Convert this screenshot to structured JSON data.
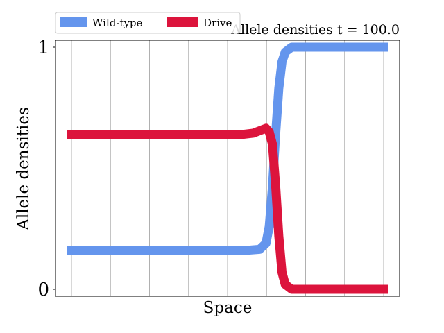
{
  "chart_data": {
    "type": "line",
    "title": "Allele densities t = 100.0",
    "xlabel": "Space",
    "ylabel": "Allele densities",
    "xlim": [
      0,
      1
    ],
    "ylim": [
      0,
      1
    ],
    "yticks": [
      {
        "value": 0,
        "label": "0"
      },
      {
        "value": 1,
        "label": "1"
      }
    ],
    "xgrid": [
      0,
      0.1,
      0.2,
      0.3,
      0.4,
      0.5,
      0.6,
      0.7,
      0.8
    ],
    "grid": "vertical",
    "legend": "top-left, above axes",
    "series": [
      {
        "name": "Wild-type",
        "color": "#6495ED",
        "x": [
          0,
          0.1,
          0.2,
          0.3,
          0.4,
          0.5,
          0.55,
          0.6,
          0.62,
          0.63,
          0.64,
          0.65,
          0.66,
          0.67,
          0.68,
          0.7,
          0.72,
          0.75,
          0.8,
          0.9,
          1.0
        ],
        "y": [
          0.16,
          0.16,
          0.16,
          0.16,
          0.16,
          0.16,
          0.16,
          0.165,
          0.19,
          0.26,
          0.42,
          0.64,
          0.83,
          0.94,
          0.98,
          1.0,
          1.0,
          1.0,
          1.0,
          1.0,
          1.0
        ]
      },
      {
        "name": "Drive",
        "color": "#DC143C",
        "x": [
          0,
          0.1,
          0.2,
          0.3,
          0.4,
          0.5,
          0.55,
          0.58,
          0.6,
          0.62,
          0.63,
          0.64,
          0.65,
          0.66,
          0.67,
          0.68,
          0.7,
          0.72,
          0.75,
          0.8,
          0.9,
          1.0
        ],
        "y": [
          0.64,
          0.64,
          0.64,
          0.64,
          0.64,
          0.64,
          0.64,
          0.645,
          0.655,
          0.665,
          0.65,
          0.6,
          0.43,
          0.22,
          0.07,
          0.02,
          0.0,
          0.0,
          0.0,
          0.0,
          0.0,
          0.0
        ]
      }
    ]
  }
}
